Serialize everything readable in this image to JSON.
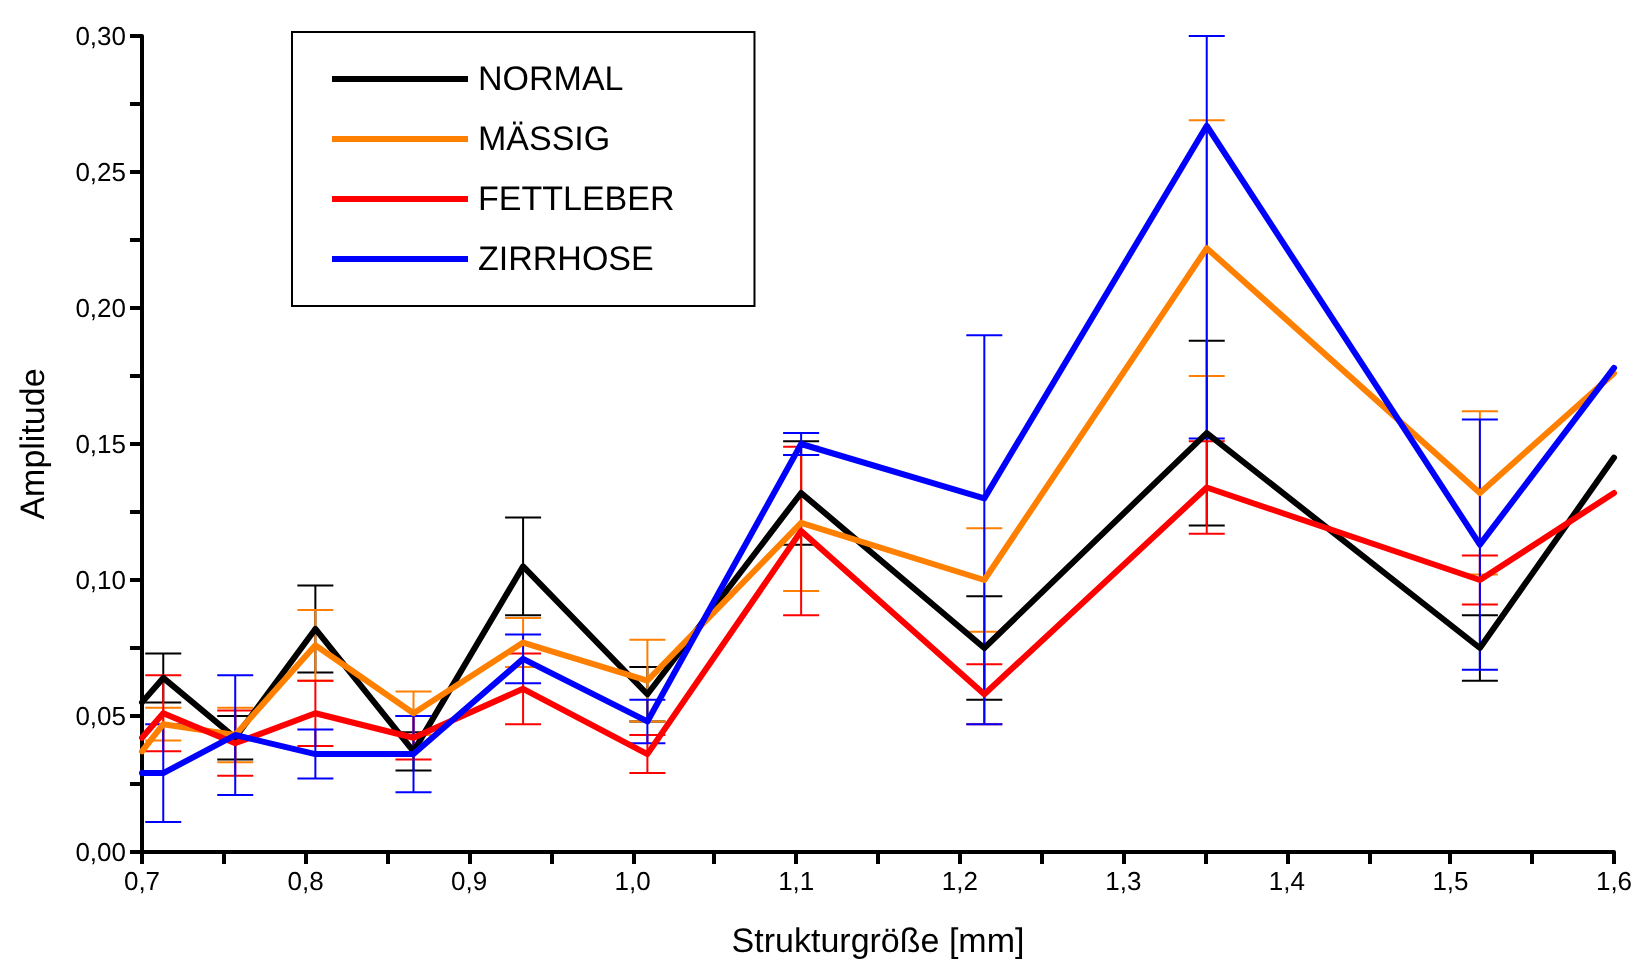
{
  "chart_data": {
    "type": "line",
    "xlabel": "Strukturgröße [mm]",
    "ylabel": "Amplitude",
    "x": [
      0.7,
      0.713,
      0.757,
      0.806,
      0.866,
      0.933,
      1.009,
      1.103,
      1.215,
      1.351,
      1.518,
      1.6
    ],
    "series": [
      {
        "name": "NORMAL",
        "color": "#000000",
        "values": [
          0.055,
          0.064,
          0.042,
          0.082,
          0.037,
          0.105,
          0.058,
          0.132,
          0.075,
          0.154,
          0.075,
          0.145
        ],
        "errors": [
          null,
          0.009,
          0.008,
          0.016,
          0.007,
          0.018,
          0.01,
          0.019,
          0.019,
          0.034,
          0.012,
          null
        ]
      },
      {
        "name": "MÄSSIG",
        "color": "#ff8000",
        "values": [
          0.037,
          0.047,
          0.043,
          0.076,
          0.051,
          0.077,
          0.063,
          0.121,
          0.1,
          0.222,
          0.132,
          0.176
        ],
        "errors": [
          null,
          0.006,
          0.01,
          0.013,
          0.008,
          0.009,
          0.015,
          0.025,
          0.019,
          0.047,
          0.03,
          null
        ]
      },
      {
        "name": "FETTLEBER",
        "color": "#ff0000",
        "values": [
          0.042,
          0.051,
          0.04,
          0.051,
          0.042,
          0.06,
          0.036,
          0.118,
          0.058,
          0.134,
          0.1,
          0.132
        ],
        "errors": [
          null,
          0.014,
          0.012,
          0.012,
          0.008,
          0.013,
          0.007,
          0.031,
          0.011,
          0.017,
          0.009,
          null
        ]
      },
      {
        "name": "ZIRRHOSE",
        "color": "#0000ff",
        "values": [
          0.029,
          0.029,
          0.043,
          0.036,
          0.036,
          0.071,
          0.048,
          0.15,
          0.13,
          0.267,
          0.113,
          0.178
        ],
        "errors": [
          null,
          0.018,
          0.022,
          0.009,
          0.014,
          0.009,
          0.008,
          0.004,
          [
            0.047,
            0.19
          ],
          [
            0.152,
            0.3
          ],
          0.046,
          null
        ]
      }
    ],
    "xlim": [
      0.7,
      1.6
    ],
    "xticks": [
      {
        "value": 0.7,
        "label": "0,7"
      },
      {
        "value": 0.75,
        "label": null
      },
      {
        "value": 0.8,
        "label": "0,8"
      },
      {
        "value": 0.85,
        "label": null
      },
      {
        "value": 0.9,
        "label": "0,9"
      },
      {
        "value": 0.95,
        "label": null
      },
      {
        "value": 1.0,
        "label": "1,0"
      },
      {
        "value": 1.05,
        "label": null
      },
      {
        "value": 1.1,
        "label": "1,1"
      },
      {
        "value": 1.15,
        "label": null
      },
      {
        "value": 1.2,
        "label": "1,2"
      },
      {
        "value": 1.25,
        "label": null
      },
      {
        "value": 1.3,
        "label": "1,3"
      },
      {
        "value": 1.35,
        "label": null
      },
      {
        "value": 1.4,
        "label": "1,4"
      },
      {
        "value": 1.45,
        "label": null
      },
      {
        "value": 1.5,
        "label": "1,5"
      },
      {
        "value": 1.55,
        "label": null
      },
      {
        "value": 1.6,
        "label": "1,6"
      }
    ],
    "ylim": [
      0,
      0.3
    ],
    "yticks": [
      {
        "value": 0,
        "label": "0,00"
      },
      {
        "value": 0.025,
        "label": null
      },
      {
        "value": 0.05,
        "label": "0,05"
      },
      {
        "value": 0.075,
        "label": null
      },
      {
        "value": 0.1,
        "label": "0,10"
      },
      {
        "value": 0.125,
        "label": null
      },
      {
        "value": 0.15,
        "label": "0,15"
      },
      {
        "value": 0.175,
        "label": null
      },
      {
        "value": 0.2,
        "label": "0,20"
      },
      {
        "value": 0.225,
        "label": null
      },
      {
        "value": 0.25,
        "label": "0,25"
      },
      {
        "value": 0.275,
        "label": null
      },
      {
        "value": 0.3,
        "label": "0,30"
      }
    ],
    "grid": false,
    "legend": "top left",
    "marker": "none",
    "line_style": "solid"
  }
}
